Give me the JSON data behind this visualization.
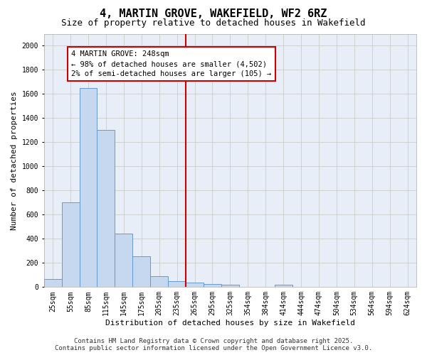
{
  "title": "4, MARTIN GROVE, WAKEFIELD, WF2 6RZ",
  "subtitle": "Size of property relative to detached houses in Wakefield",
  "xlabel": "Distribution of detached houses by size in Wakefield",
  "ylabel": "Number of detached properties",
  "categories": [
    "25sqm",
    "55sqm",
    "85sqm",
    "115sqm",
    "145sqm",
    "175sqm",
    "205sqm",
    "235sqm",
    "265sqm",
    "295sqm",
    "325sqm",
    "354sqm",
    "384sqm",
    "414sqm",
    "444sqm",
    "474sqm",
    "504sqm",
    "534sqm",
    "564sqm",
    "594sqm",
    "624sqm"
  ],
  "values": [
    65,
    700,
    1650,
    1305,
    445,
    255,
    90,
    50,
    40,
    28,
    18,
    0,
    0,
    18,
    0,
    0,
    0,
    0,
    0,
    0,
    0
  ],
  "bar_color": "#c5d8f0",
  "bar_edge_color": "#6699cc",
  "vline_color": "#cc0000",
  "annotation_text": "4 MARTIN GROVE: 248sqm\n← 98% of detached houses are smaller (4,502)\n2% of semi-detached houses are larger (105) →",
  "annotation_box_color": "#cc0000",
  "ylim": [
    0,
    2100
  ],
  "yticks": [
    0,
    200,
    400,
    600,
    800,
    1000,
    1200,
    1400,
    1600,
    1800,
    2000
  ],
  "grid_color": "#cccccc",
  "bg_color": "#e8eef8",
  "footer_line1": "Contains HM Land Registry data © Crown copyright and database right 2025.",
  "footer_line2": "Contains public sector information licensed under the Open Government Licence v3.0.",
  "title_fontsize": 11,
  "subtitle_fontsize": 9,
  "axis_label_fontsize": 8,
  "tick_fontsize": 7,
  "annotation_fontsize": 7.5,
  "footer_fontsize": 6.5
}
